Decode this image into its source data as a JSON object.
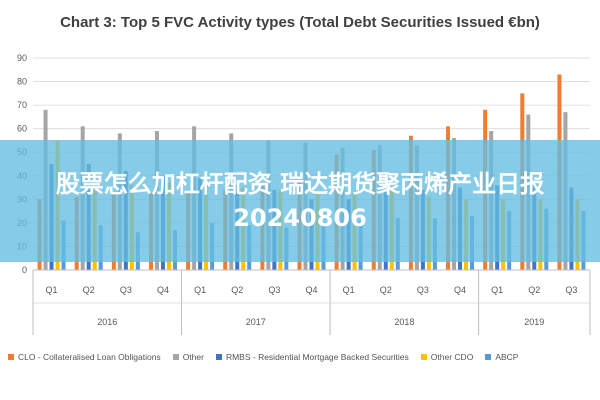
{
  "chart_data": {
    "type": "bar",
    "title": "Chart 3: Top 5 FVC Activity types (Total Debt Securities Issued €bn)",
    "ylim": [
      0,
      90
    ],
    "yticks": [
      0,
      10,
      20,
      30,
      40,
      50,
      60,
      70,
      80,
      90
    ],
    "grid": true,
    "legend_position": "bottom",
    "categories": [
      "Q1",
      "Q2",
      "Q3",
      "Q4",
      "Q1",
      "Q2",
      "Q3",
      "Q4",
      "Q1",
      "Q2",
      "Q3",
      "Q4",
      "Q1",
      "Q2",
      "Q3"
    ],
    "groups": [
      {
        "label": "2016",
        "count": 4
      },
      {
        "label": "2017",
        "count": 4
      },
      {
        "label": "2018",
        "count": 4
      },
      {
        "label": "2019",
        "count": 3
      }
    ],
    "series": [
      {
        "name": "CLO - Collateralised Loan Obligations",
        "color": "#ED7D31",
        "values": [
          30,
          31,
          33,
          33,
          34,
          34,
          36,
          38,
          49,
          51,
          57,
          61,
          68,
          75,
          83
        ]
      },
      {
        "name": "Other",
        "color": "#A5A5A5",
        "values": [
          68,
          61,
          58,
          59,
          61,
          58,
          55,
          54,
          52,
          53,
          53,
          56,
          59,
          66,
          67
        ]
      },
      {
        "name": "RMBS - Residential Mortgage Backed Securities",
        "color": "#4472C4",
        "values": [
          45,
          45,
          42,
          40,
          39,
          36,
          34,
          30,
          30,
          33,
          34,
          35,
          36,
          36,
          35
        ]
      },
      {
        "name": "Other CDO",
        "color": "#FFC000",
        "values": [
          55,
          38,
          36,
          37,
          36,
          35,
          34,
          33,
          33,
          34,
          31,
          30,
          30,
          30,
          30
        ]
      },
      {
        "name": "ABCP",
        "color": "#5B9BD5",
        "values": [
          21,
          19,
          16,
          17,
          20,
          19,
          18,
          20,
          21,
          22,
          22,
          23,
          25,
          26,
          25
        ]
      }
    ]
  },
  "overlay": {
    "text": "股票怎么加杠杆配资 瑞达期货聚丙烯产业日报20240806"
  }
}
